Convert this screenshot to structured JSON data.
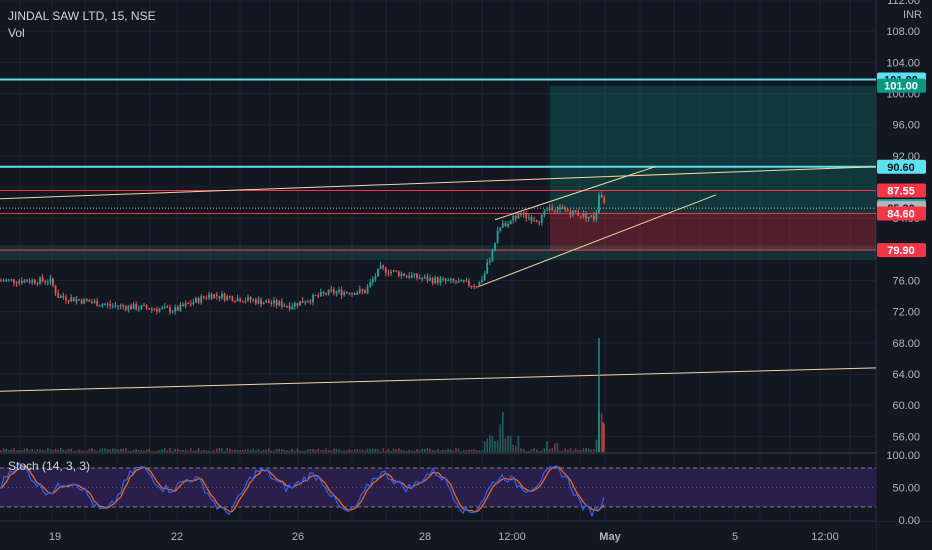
{
  "header": {
    "symbol_line": "JINDAL SAW LTD, 15, NSE",
    "volume_label": "Vol"
  },
  "currency_label": "INR",
  "colors": {
    "background": "#131722",
    "grid": "#1e222d",
    "up": "#26a69a",
    "down": "#ef5350",
    "cyan_level": "#5ce1f0",
    "trend": "#f0d7a0",
    "stoch_k": "#2962ff",
    "stoch_d": "#ff6d00",
    "stoch_band": "#2a1f4a"
  },
  "chart_data": {
    "type": "candlestick",
    "title": "JINDAL SAW LTD, 15, NSE",
    "ylim": [
      54,
      112
    ],
    "y_ticks": [
      "112.00",
      "108.00",
      "104.00",
      "100.00",
      "96.00",
      "92.00",
      "88.00",
      "84.00",
      "80.00",
      "76.00",
      "72.00",
      "68.00",
      "64.00",
      "60.00",
      "56.00"
    ],
    "x_ticks": [
      "19",
      "22",
      "26",
      "28",
      "12:00",
      "May",
      "5",
      "12:00"
    ],
    "price_tags": [
      {
        "label": "101.80",
        "value": 101.8,
        "bg": "#5ce1f0",
        "fg": "#131722"
      },
      {
        "label": "101.00",
        "value": 101.0,
        "bg": "#089981",
        "fg": "#ffffff"
      },
      {
        "label": "90.60",
        "value": 90.6,
        "bg": "#5ce1f0",
        "fg": "#131722"
      },
      {
        "label": "87.55",
        "value": 87.55,
        "bg": "#f23645",
        "fg": "#ffffff"
      },
      {
        "label": "85.55",
        "value": 85.55,
        "bg": "#26a69a",
        "fg": "#ffffff"
      },
      {
        "label": "85.30",
        "value": 85.3,
        "bg": "#b2b5be",
        "fg": "#131722"
      },
      {
        "label": "84.60",
        "value": 84.6,
        "bg": "#f23645",
        "fg": "#ffffff"
      },
      {
        "label": "79.90",
        "value": 79.9,
        "bg": "#f23645",
        "fg": "#ffffff"
      }
    ],
    "horizontal_levels": [
      {
        "value": 101.8,
        "color": "#5ce1f0"
      },
      {
        "value": 90.6,
        "color": "#5ce1f0"
      }
    ],
    "position_zone": {
      "entry": 84.6,
      "target": 101.0,
      "stop": 79.9
    },
    "price_path": [
      {
        "x": "19",
        "price": 76.0
      },
      {
        "x": "22",
        "price": 72.5
      },
      {
        "x": "26",
        "price": 74.5
      },
      {
        "x": "28",
        "price": 76.5
      },
      {
        "x": "12:00",
        "price": 84.5
      },
      {
        "x": "May",
        "price": 85.55
      }
    ],
    "stochastic": {
      "label": "Stoch (14, 3, 3)",
      "ylim": [
        0,
        100
      ],
      "ticks": [
        "100.00",
        "50.00",
        "0.00"
      ],
      "upper_band": 80,
      "lower_band": 20
    }
  }
}
